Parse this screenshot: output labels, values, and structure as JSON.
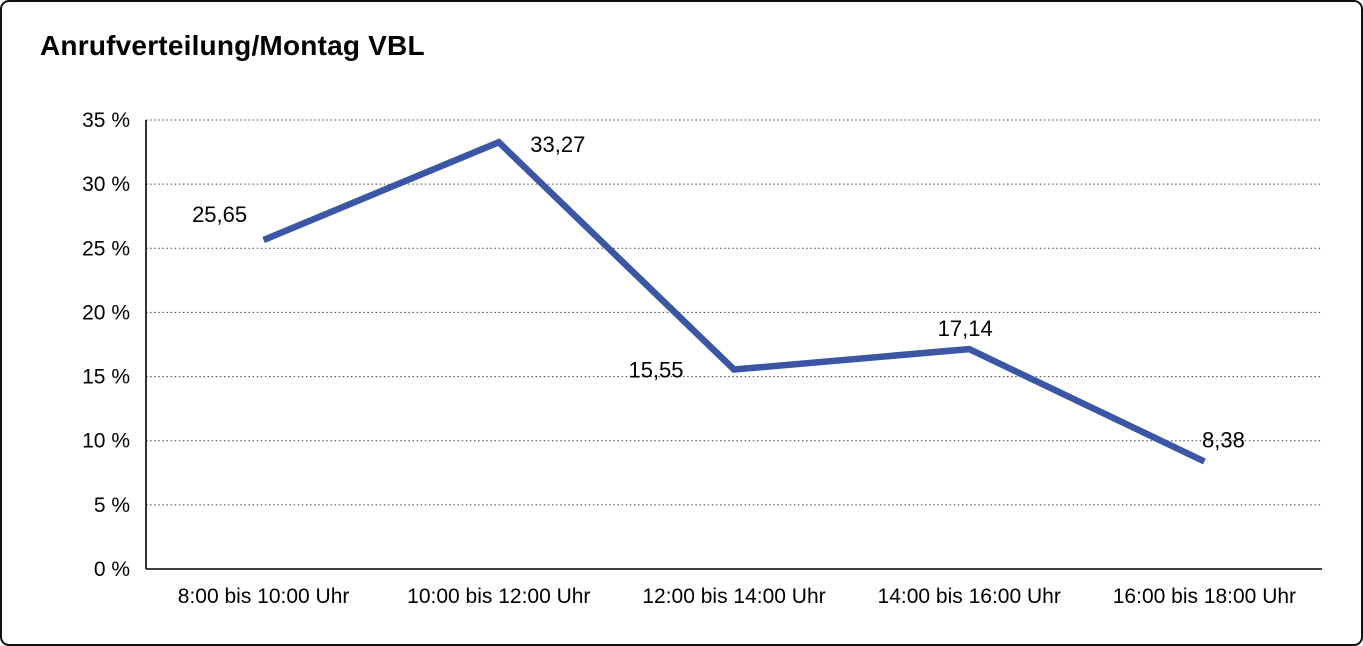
{
  "title": "Anrufverteilung/Montag VBL",
  "frame": {
    "background": "#ffffff",
    "border_color": "#111111"
  },
  "chart_data": {
    "type": "line",
    "title": "Anrufverteilung/Montag VBL",
    "categories": [
      "8:00 bis 10:00 Uhr",
      "10:00 bis 12:00 Uhr",
      "12:00 bis 14:00 Uhr",
      "14:00 bis 16:00 Uhr",
      "16:00 bis 18:00 Uhr"
    ],
    "series": [
      {
        "values": [
          25.65,
          33.27,
          15.55,
          17.14,
          8.38
        ],
        "point_labels": [
          "25,65",
          "33,27",
          "15,55",
          "17,14",
          "8,38"
        ],
        "point_label_positions": [
          "above-left",
          "right",
          "left",
          "above",
          "above-right"
        ],
        "color": "#3A56A4",
        "line_width": 6.5
      }
    ],
    "ylim": [
      0,
      35
    ],
    "ytick_step": 5,
    "ytick_labels": [
      "0 %",
      "5 %",
      "10 %",
      "15 %",
      "20 %",
      "25 %",
      "30 %",
      "35 %"
    ],
    "xlabel": "",
    "ylabel": "",
    "grid": "horizontal-dotted",
    "grid_color": "#404040",
    "axis_color": "#000000",
    "legend": "none"
  }
}
